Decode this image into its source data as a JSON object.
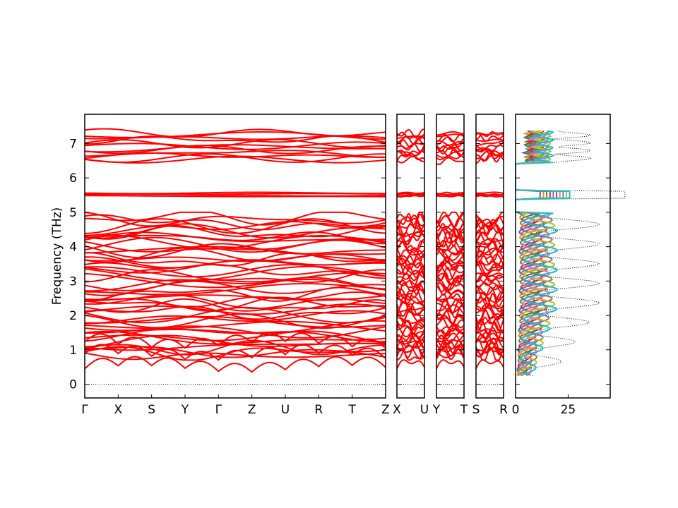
{
  "chart_data": {
    "type": "line",
    "ylabel": "Frequency (THz)",
    "ylim": [
      -0.4,
      7.85
    ],
    "yticks": [
      "0",
      "1",
      "2",
      "3",
      "4",
      "5",
      "6",
      "7"
    ],
    "band_color": "#ff0000",
    "zero_line_color": "#0000cc",
    "panels": [
      {
        "name": "main-path",
        "labels": [
          "Γ",
          "X",
          "S",
          "Y",
          "Γ",
          "Z",
          "U",
          "R",
          "T",
          "Z"
        ]
      },
      {
        "name": "x-u",
        "labels": [
          "X",
          "U"
        ]
      },
      {
        "name": "y-t",
        "labels": [
          "Y",
          "T"
        ]
      },
      {
        "name": "s-r",
        "labels": [
          "S",
          "R"
        ]
      }
    ],
    "dos": {
      "xticks": [
        "0",
        "25"
      ],
      "xlim": [
        0,
        45
      ],
      "total_color": "#000000",
      "projected_colors": [
        "#1f77b4",
        "#ff7f0e",
        "#2ca02c",
        "#d62728",
        "#9467bd",
        "#8c564b",
        "#e377c2",
        "#7f7f7f",
        "#bcbd22",
        "#17becf"
      ]
    }
  }
}
